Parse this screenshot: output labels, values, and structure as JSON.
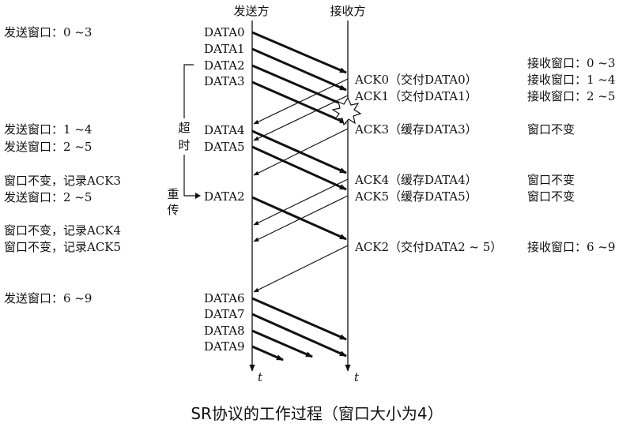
{
  "columns": {
    "sender": "发送方",
    "receiver": "接收方",
    "time_label": "t"
  },
  "left_notes": [
    "发送窗口：0 ~3",
    "发送窗口：1 ~4",
    "发送窗口：2 ~5",
    "窗口不变，记录ACK3",
    "发送窗口：2 ~5",
    "窗口不变，记录ACK4",
    "窗口不变，记录ACK5",
    "发送窗口：6 ~9"
  ],
  "data_labels": [
    "DATA0",
    "DATA1",
    "DATA2",
    "DATA3",
    "DATA4",
    "DATA5",
    "DATA2",
    "DATA6",
    "DATA7",
    "DATA8",
    "DATA9"
  ],
  "timeout": {
    "top": "超",
    "bottom": "时"
  },
  "retransmit": {
    "top": "重",
    "bottom": "传"
  },
  "ack_labels": [
    "ACK0（交付DATA0）",
    "ACK1（交付DATA1）",
    "ACK3（缓存DATA3）",
    "ACK4（缓存DATA4）",
    "ACK5（缓存DATA5）",
    "ACK2（交付DATA2 ~ 5）"
  ],
  "right_notes": [
    "接收窗口：0 ~3",
    "接收窗口：1 ~4",
    "接收窗口：2 ~5",
    "窗口不变",
    "窗口不变",
    "窗口不变",
    "接收窗口：6 ~9"
  ],
  "caption": "SR协议的工作过程（窗口大小为4）"
}
